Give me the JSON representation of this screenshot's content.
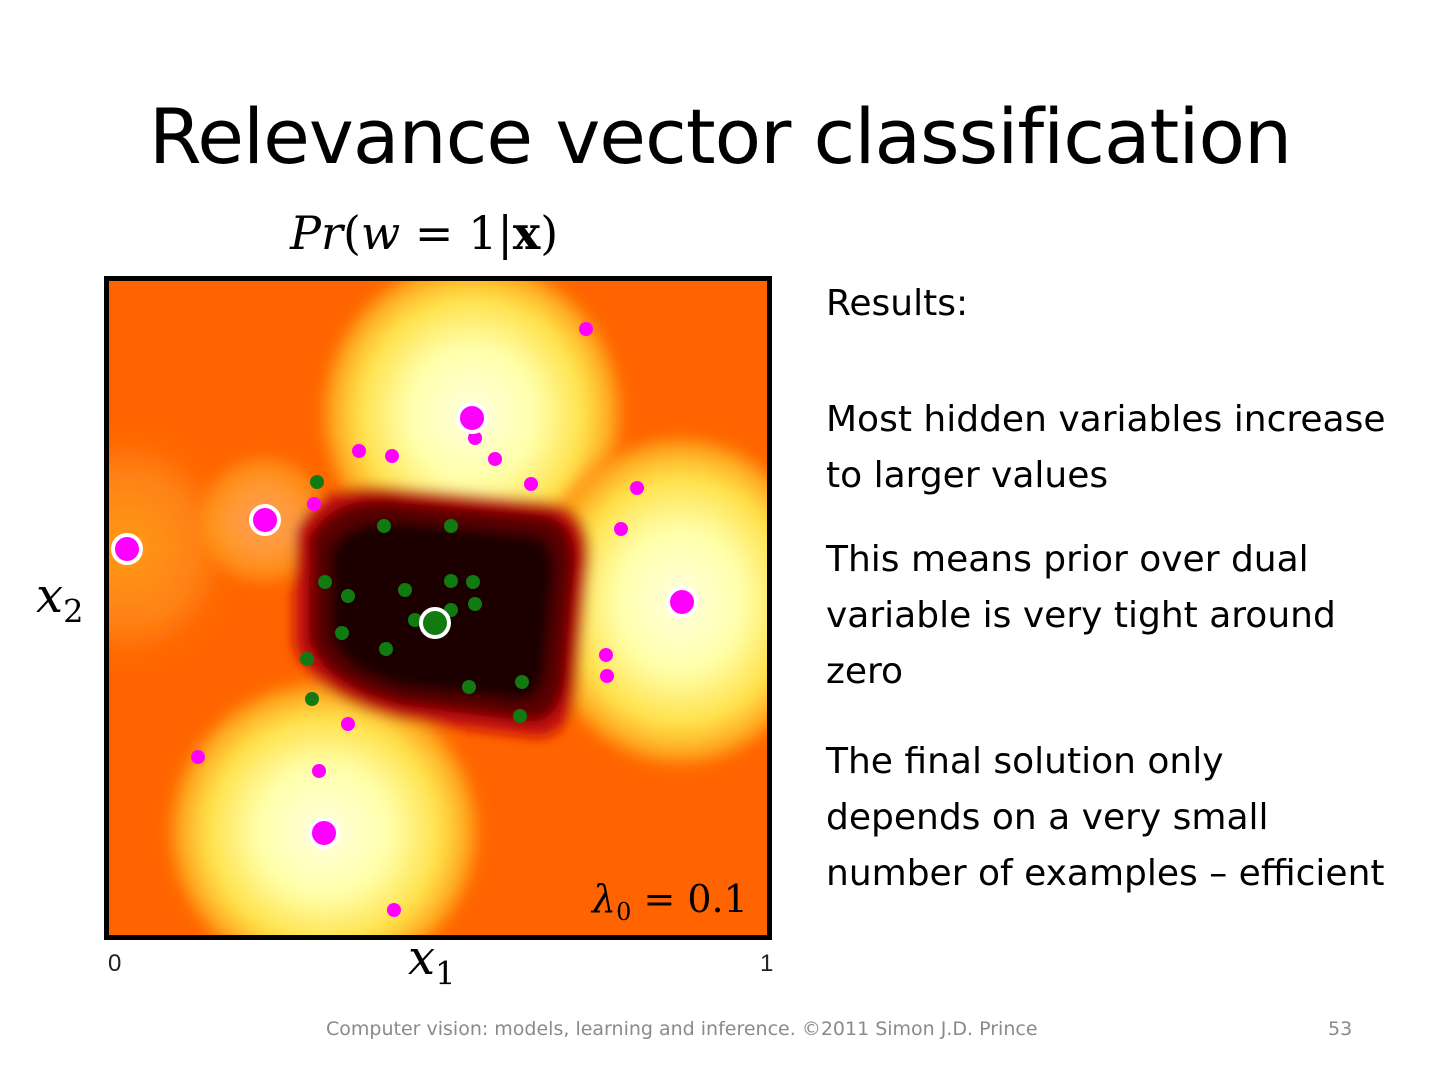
{
  "slide": {
    "title": "Relevance vector classification",
    "formula": {
      "pr": "Pr",
      "open": "(",
      "w": "w",
      "eq": " = 1|",
      "x": "x",
      "close": ")"
    },
    "plot": {
      "x_axis_label": "x",
      "x_axis_sub": "1",
      "y_axis_label": "x",
      "y_axis_sub": "2",
      "tick_min": "0",
      "tick_max": "1",
      "lambda_label": "λ",
      "lambda_sub": "0",
      "lambda_value": " = 0.1"
    },
    "text": {
      "heading": "Results:",
      "para1": "Most hidden variables increase to larger values",
      "para2": "This means prior over dual variable is very tight around zero",
      "para3": "The final solution only depends on a very small number of examples – efficient"
    },
    "footer": "Computer vision: models, learning and inference.  ©2011 Simon J.D. Prince",
    "page_number": "53"
  },
  "colors": {
    "class_pink": "#ff00ff",
    "class_green": "#117a11",
    "low_prob": "#000000",
    "mid_prob": "#ff6600",
    "high_prob": "#ffffcc"
  }
}
